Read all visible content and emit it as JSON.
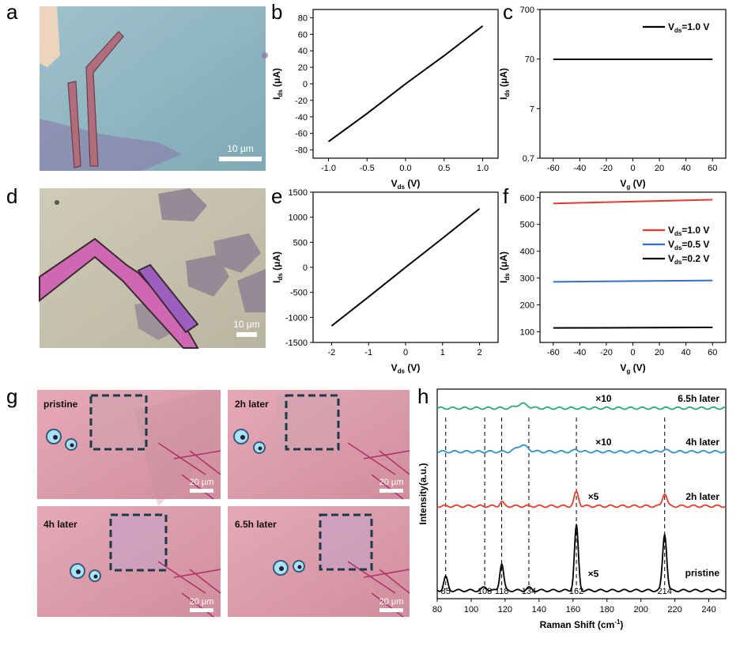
{
  "panels": {
    "a": "a",
    "b": "b",
    "c": "c",
    "d": "d",
    "e": "e",
    "f": "f",
    "g": "g",
    "h": "h"
  },
  "images": {
    "a": {
      "scale_bar": "10 μm"
    },
    "d": {
      "scale_bar": "10 μm"
    },
    "g": [
      {
        "label": "pristine",
        "scale_bar": "20 μm"
      },
      {
        "label": "2h later",
        "scale_bar": "20 μm"
      },
      {
        "label": "4h later",
        "scale_bar": "20 μm"
      },
      {
        "label": "6.5h later",
        "scale_bar": "20 μm"
      }
    ]
  },
  "chart_data": [
    {
      "panel": "b",
      "type": "line",
      "xlabel_main": "V",
      "xlabel_sub": "ds",
      "xlabel_unit": " (V)",
      "ylabel_main": "I",
      "ylabel_sub": "ds",
      "ylabel_unit": " (μA)",
      "xlim": [
        -1.2,
        1.2
      ],
      "ylim": [
        -90,
        90
      ],
      "xticks": [
        "-1.0",
        "-0.5",
        "0.0",
        "0.5",
        "1.0"
      ],
      "yticks": [
        "-80",
        "-60",
        "-40",
        "-20",
        "0",
        "20",
        "40",
        "60",
        "80"
      ],
      "series": [
        {
          "color": "#000000",
          "x": [
            -1.0,
            -0.5,
            0.0,
            0.5,
            1.0
          ],
          "y": [
            -70,
            -36,
            0,
            34,
            70
          ]
        }
      ]
    },
    {
      "panel": "c",
      "type": "line",
      "yscale": "log",
      "xlabel_main": "V",
      "xlabel_sub": "g",
      "xlabel_unit": " (V)",
      "ylabel_main": "I",
      "ylabel_sub": "ds",
      "ylabel_unit": " (μA)",
      "xlim": [
        -70,
        70
      ],
      "ylim": [
        0.7,
        700
      ],
      "xticks": [
        "-60",
        "-40",
        "-20",
        "0",
        "20",
        "40",
        "60"
      ],
      "yticks": [
        "0.7",
        "7",
        "70",
        "700"
      ],
      "legend": [
        {
          "name_main": "V",
          "name_sub": "ds",
          "name_rest": "=1.0 V",
          "color": "#000000"
        }
      ],
      "series": [
        {
          "color": "#000000",
          "x": [
            -60,
            60
          ],
          "y": [
            69,
            69
          ]
        }
      ]
    },
    {
      "panel": "e",
      "type": "line",
      "xlabel_main": "V",
      "xlabel_sub": "ds",
      "xlabel_unit": "  (V)",
      "ylabel_main": "I",
      "ylabel_sub": "ds",
      "ylabel_unit": "  (μA)",
      "xlim": [
        -2.5,
        2.5
      ],
      "ylim": [
        -1500,
        1500
      ],
      "xticks": [
        "-2",
        "-1",
        "0",
        "1",
        "2"
      ],
      "yticks": [
        "-1500",
        "-1000",
        "-500",
        "0",
        "500",
        "1000",
        "1500"
      ],
      "series": [
        {
          "color": "#000000",
          "x": [
            -2,
            -1,
            0,
            1,
            2
          ],
          "y": [
            -1170,
            -590,
            0,
            580,
            1170
          ]
        }
      ]
    },
    {
      "panel": "f",
      "type": "line",
      "xlabel_main": "V",
      "xlabel_sub": "g",
      "xlabel_unit": "  (V)",
      "ylabel_main": "I",
      "ylabel_sub": "ds",
      "ylabel_unit": "  (μA)",
      "xlim": [
        -70,
        70
      ],
      "ylim": [
        60,
        620
      ],
      "xticks": [
        "-60",
        "-40",
        "-20",
        "0",
        "20",
        "40",
        "60"
      ],
      "yticks": [
        "100",
        "200",
        "300",
        "400",
        "500",
        "600"
      ],
      "legend": [
        {
          "name_main": "V",
          "name_sub": "ds",
          "name_rest": "=1.0 V",
          "color": "#e8392a"
        },
        {
          "name_main": "V",
          "name_sub": "ds",
          "name_rest": "=0.5 V",
          "color": "#2f6fd0"
        },
        {
          "name_main": "V",
          "name_sub": "ds",
          "name_rest": "=0.2 V",
          "color": "#000000"
        }
      ],
      "series": [
        {
          "color": "#e8392a",
          "x": [
            -60,
            60
          ],
          "y": [
            578,
            592
          ]
        },
        {
          "color": "#2f6fd0",
          "x": [
            -60,
            60
          ],
          "y": [
            286,
            291
          ]
        },
        {
          "color": "#000000",
          "x": [
            -60,
            60
          ],
          "y": [
            114,
            116
          ]
        }
      ]
    },
    {
      "panel": "h",
      "type": "line",
      "xlabel": "Raman Shift (cm",
      "xlabel_sup": "-1",
      "xlabel_end": ")",
      "ylabel": "Intensity(a.u.)",
      "xlim": [
        80,
        250
      ],
      "xticks": [
        "80",
        "100",
        "120",
        "140",
        "160",
        "180",
        "200",
        "220",
        "240"
      ],
      "peak_lines": [
        85,
        108,
        118,
        134,
        162,
        214
      ],
      "peak_labels": [
        "85",
        "108",
        "118",
        "134",
        "162",
        "214"
      ],
      "series": [
        {
          "name": "pristine",
          "multiplier": "×5",
          "color": "#000000",
          "baseline": 0.0,
          "peaks": [
            [
              85,
              0.25,
              1.6
            ],
            [
              108,
              0.06,
              2.0
            ],
            [
              118,
              0.5,
              1.6
            ],
            [
              134,
              0.05,
              2.0
            ],
            [
              162,
              1.2,
              1.6
            ],
            [
              214,
              1.05,
              1.7
            ]
          ]
        },
        {
          "name": "2h later",
          "multiplier": "×5",
          "color": "#e8392a",
          "baseline": 1.55,
          "peaks": [
            [
              118,
              0.08,
              1.5
            ],
            [
              162,
              0.26,
              1.8
            ],
            [
              214,
              0.24,
              1.8
            ]
          ]
        },
        {
          "name": "4h later",
          "multiplier": "×10",
          "color": "#2f8fd0",
          "baseline": 2.55,
          "peaks": [
            [
              130,
              0.12,
              4.5
            ],
            [
              162,
              0.04,
              2.0
            ],
            [
              214,
              0.04,
              2.0
            ]
          ]
        },
        {
          "name": "6.5h later",
          "multiplier": "×10",
          "color": "#2aaa7a",
          "baseline": 3.35,
          "peaks": [
            [
              130,
              0.08,
              4.5
            ]
          ]
        }
      ]
    }
  ]
}
